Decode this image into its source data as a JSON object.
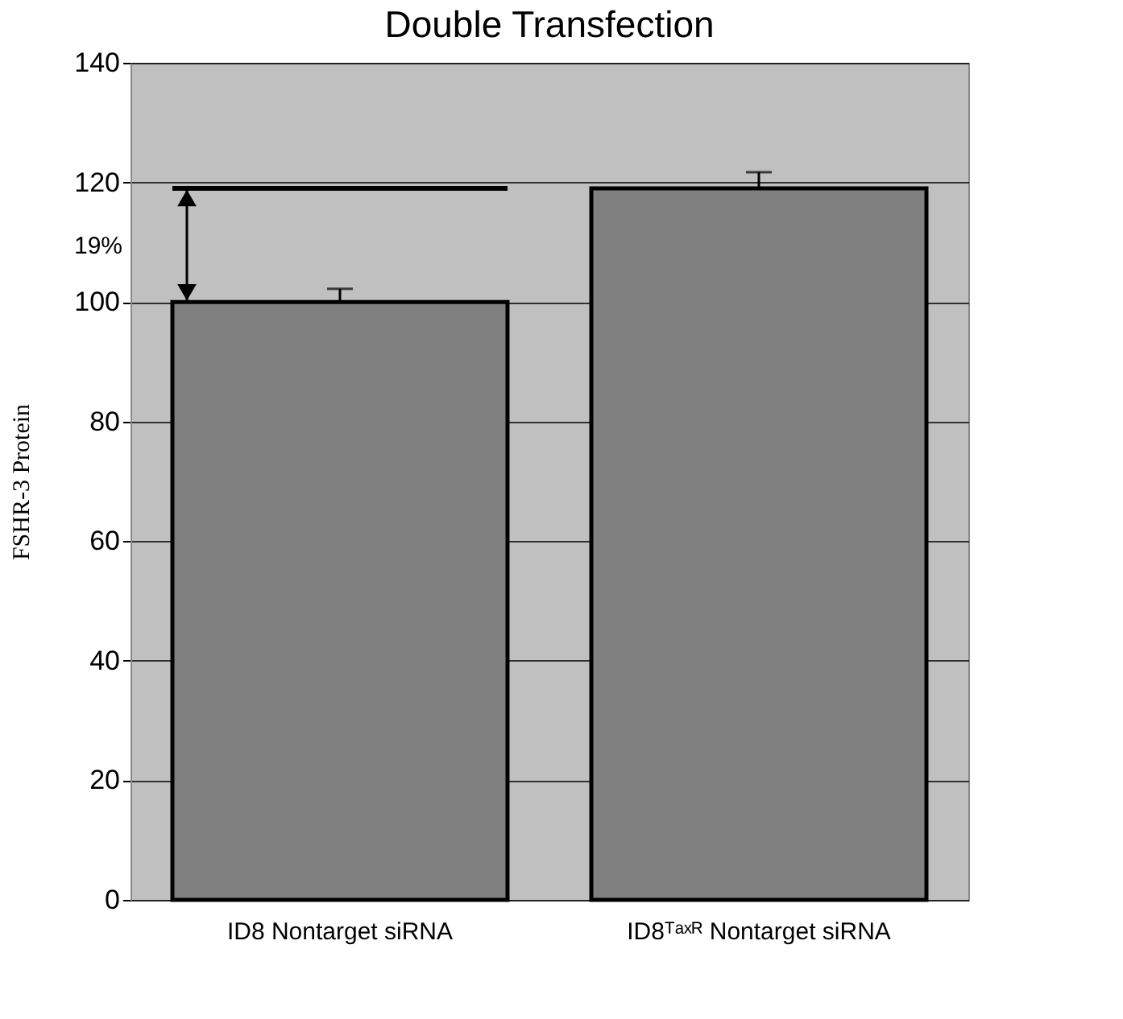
{
  "chart_data": {
    "type": "bar",
    "title": "Double Transfection",
    "ylabel": "FSHR-3 Protein",
    "categories": [
      "ID8 Nontarget siRNA",
      "ID8ᵀᵃˣᴿ Nontarget siRNA"
    ],
    "values": [
      100,
      119
    ],
    "errors": [
      2.2,
      2.7
    ],
    "color": "#808080",
    "ylim": [
      0,
      140
    ],
    "yticks": [
      0,
      20,
      40,
      60,
      80,
      100,
      120,
      140
    ],
    "grid": "y",
    "ref_lines": [
      {
        "axis": "y",
        "value": 119,
        "label": null,
        "color": "#000000"
      }
    ],
    "annotations": [
      "19%"
    ]
  }
}
